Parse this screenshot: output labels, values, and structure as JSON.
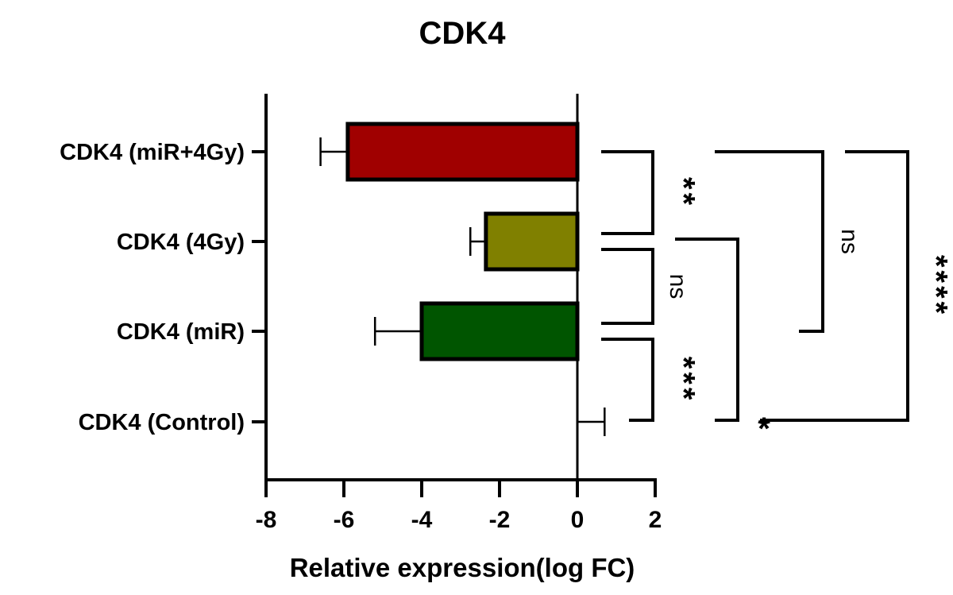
{
  "chart_data": {
    "type": "bar",
    "orientation": "horizontal",
    "title": "CDK4",
    "xlabel": "Relative expression(log FC)",
    "ylabel": "",
    "xlim": [
      -8,
      2
    ],
    "xticks": [
      -8,
      -6,
      -4,
      -2,
      0,
      2
    ],
    "xtick_labels": [
      "-8",
      "-6",
      "-4",
      "-2",
      "0",
      "2"
    ],
    "grid": false,
    "legend": null,
    "categories": [
      "CDK4 (miR+4Gy)",
      "CDK4 (4Gy)",
      "CDK4 (miR)",
      "CDK4 (Control)"
    ],
    "values": [
      -5.9,
      -2.35,
      -4.0,
      0
    ],
    "errors": [
      0.7,
      0.4,
      1.2,
      0.7
    ],
    "colors": [
      "#a00000",
      "#808000",
      "#005500",
      "#ffffff"
    ],
    "comparisons": [
      {
        "from": "CDK4 (miR+4Gy)",
        "to": "CDK4 (4Gy)",
        "label": "**"
      },
      {
        "from": "CDK4 (4Gy)",
        "to": "CDK4 (miR)",
        "label": "ns"
      },
      {
        "from": "CDK4 (miR)",
        "to": "CDK4 (Control)",
        "label": "***"
      },
      {
        "from": "CDK4 (4Gy)",
        "to": "CDK4 (Control)",
        "label": "*"
      },
      {
        "from": "CDK4 (miR+4Gy)",
        "to": "CDK4 (miR)",
        "label": "ns"
      },
      {
        "from": "CDK4 (miR+4Gy)",
        "to": "CDK4 (Control)",
        "label": "****"
      }
    ]
  }
}
